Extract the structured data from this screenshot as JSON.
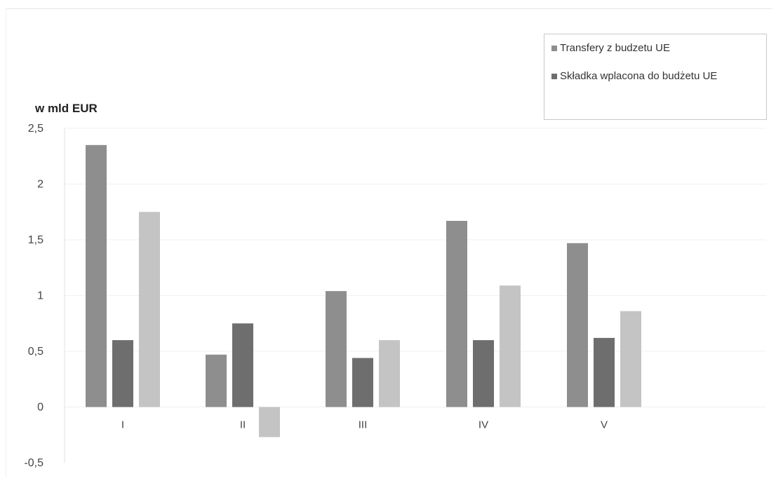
{
  "chart_data": {
    "type": "bar",
    "ylabel": "w mld EUR",
    "categories": [
      "I",
      "II",
      "III",
      "IV",
      "V"
    ],
    "ylim": [
      -0.5,
      2.5
    ],
    "yticks": [
      "2,5",
      "2",
      "1,5",
      "1",
      "0,5",
      "0",
      "-0,5"
    ],
    "ytick_values": [
      2.5,
      2,
      1.5,
      1,
      0.5,
      0,
      -0.5
    ],
    "grid": true,
    "legend_position": "top-right",
    "series": [
      {
        "name": "Transfery z budzetu UE",
        "color": "#8e8e8e",
        "values": [
          2.35,
          0.47,
          1.04,
          1.67,
          1.47
        ]
      },
      {
        "name": "Składka wplacona do budżetu UE",
        "color": "#6e6e6e",
        "values": [
          0.6,
          0.75,
          0.44,
          0.6,
          0.62
        ]
      },
      {
        "color": "#c4c4c4",
        "values": [
          1.75,
          -0.27,
          0.6,
          1.09,
          0.86
        ]
      }
    ]
  },
  "legend": {
    "items": [
      {
        "label": "Transfery z budzetu UE",
        "color": "#8e8e8e"
      },
      {
        "label": "Składka wplacona do budżetu UE",
        "color": "#6e6e6e"
      }
    ]
  }
}
